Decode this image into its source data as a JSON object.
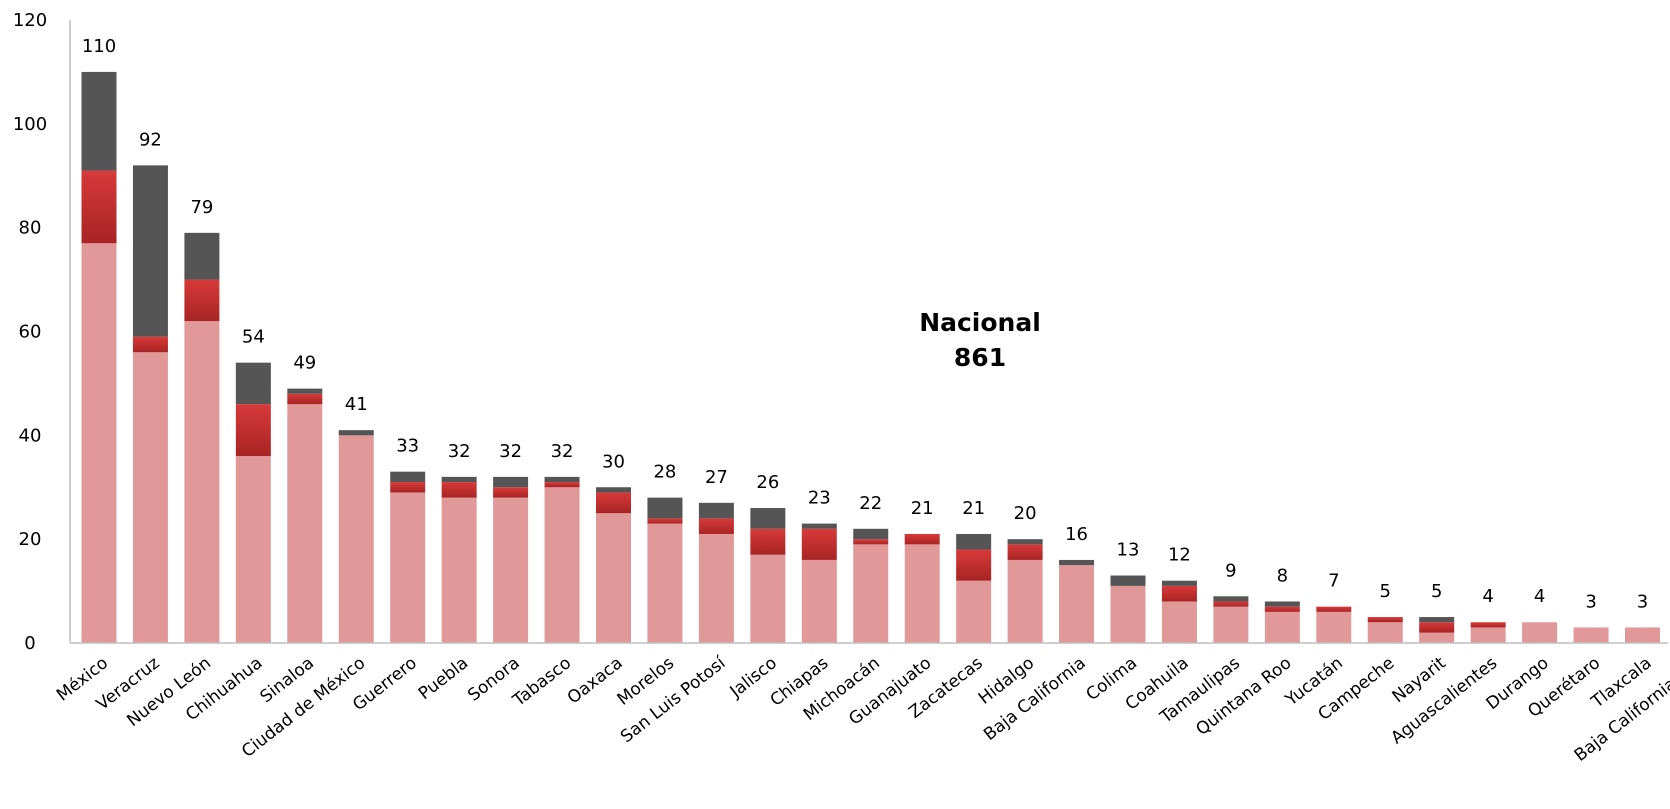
{
  "chart_data": {
    "type": "bar",
    "stacked": true,
    "ylim": [
      0,
      120
    ],
    "yticks": [
      0,
      20,
      40,
      60,
      80,
      100,
      120
    ],
    "grid": false,
    "legend": "none",
    "annotation": {
      "line1": "Nacional",
      "line2": "861"
    },
    "colors": {
      "bottom": "#e09898",
      "middle": "#c62e2e",
      "top": "#555555",
      "axis": "#bfbfbf"
    },
    "categories": [
      "México",
      "Veracruz",
      "Nuevo León",
      "Chihuahua",
      "Sinaloa",
      "Ciudad de México",
      "Guerrero",
      "Puebla",
      "Sonora",
      "Tabasco",
      "Oaxaca",
      "Morelos",
      "San Luis Potosí",
      "Jalisco",
      "Chiapas",
      "Michoacán",
      "Guanajuato",
      "Zacatecas",
      "Hidalgo",
      "Baja California",
      "Colima",
      "Coahuila",
      "Tamaulipas",
      "Quintana Roo",
      "Yucatán",
      "Campeche",
      "Nayarit",
      "Aguascalientes",
      "Durango",
      "Querétaro",
      "Tlaxcala",
      "Baja California Sur"
    ],
    "totals": [
      110,
      92,
      79,
      54,
      49,
      41,
      33,
      32,
      32,
      32,
      30,
      28,
      27,
      26,
      23,
      22,
      21,
      21,
      20,
      16,
      13,
      12,
      9,
      8,
      7,
      5,
      5,
      4,
      4,
      3,
      3,
      0
    ],
    "series": [
      {
        "values": [
          77,
          56,
          62,
          36,
          46,
          40,
          29,
          28,
          28,
          30,
          25,
          23,
          21,
          17,
          16,
          19,
          19,
          12,
          16,
          15,
          11,
          8,
          7,
          6,
          6,
          4,
          2,
          3,
          4,
          3,
          3,
          0
        ]
      },
      {
        "values": [
          14,
          3,
          8,
          10,
          2,
          0,
          2,
          3,
          2,
          1,
          4,
          1,
          3,
          5,
          6,
          1,
          2,
          6,
          3,
          0,
          0,
          3,
          1,
          1,
          1,
          1,
          2,
          1,
          0,
          0,
          0,
          0
        ]
      },
      {
        "values": [
          19,
          33,
          9,
          8,
          1,
          1,
          2,
          1,
          2,
          1,
          1,
          4,
          3,
          4,
          1,
          2,
          0,
          3,
          1,
          1,
          2,
          1,
          1,
          1,
          0,
          0,
          1,
          0,
          0,
          0,
          0,
          0
        ]
      }
    ]
  }
}
